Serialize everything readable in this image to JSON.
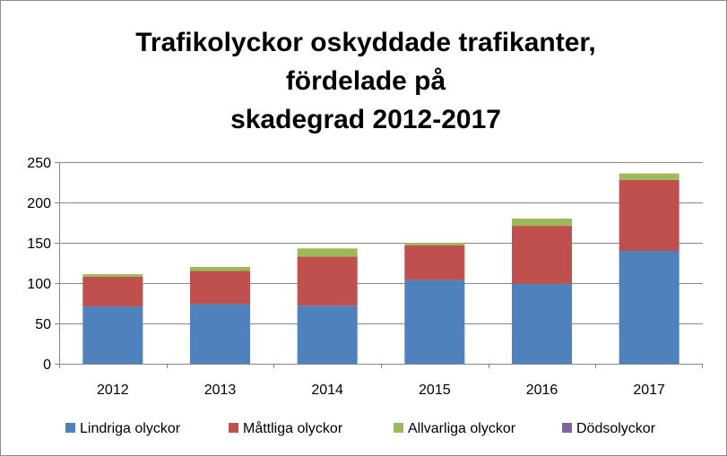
{
  "chart_data": {
    "type": "bar",
    "stacked": true,
    "title_lines": [
      "Trafikolyckor oskyddade trafikanter,",
      "fördelade på",
      "skadegrad 2012-2017"
    ],
    "categories": [
      "2012",
      "2013",
      "2014",
      "2015",
      "2016",
      "2017"
    ],
    "series": [
      {
        "name": "Lindriga olyckor",
        "color": "#4F81BD",
        "values": [
          71,
          74,
          72,
          104,
          99,
          140
        ]
      },
      {
        "name": "Måttliga olyckor",
        "color": "#C0504D",
        "values": [
          37,
          41,
          61,
          43,
          72,
          88
        ]
      },
      {
        "name": "Allvarliga olyckor",
        "color": "#9BBB59",
        "values": [
          3,
          5,
          10,
          3,
          9,
          8
        ]
      },
      {
        "name": "Dödsolyckor",
        "color": "#8064A2",
        "values": [
          0,
          0,
          0,
          0,
          0,
          0
        ]
      }
    ],
    "ylim": [
      0,
      250
    ],
    "yticks": [
      0,
      50,
      100,
      150,
      200,
      250
    ],
    "grid": true,
    "legend": "bottom"
  }
}
